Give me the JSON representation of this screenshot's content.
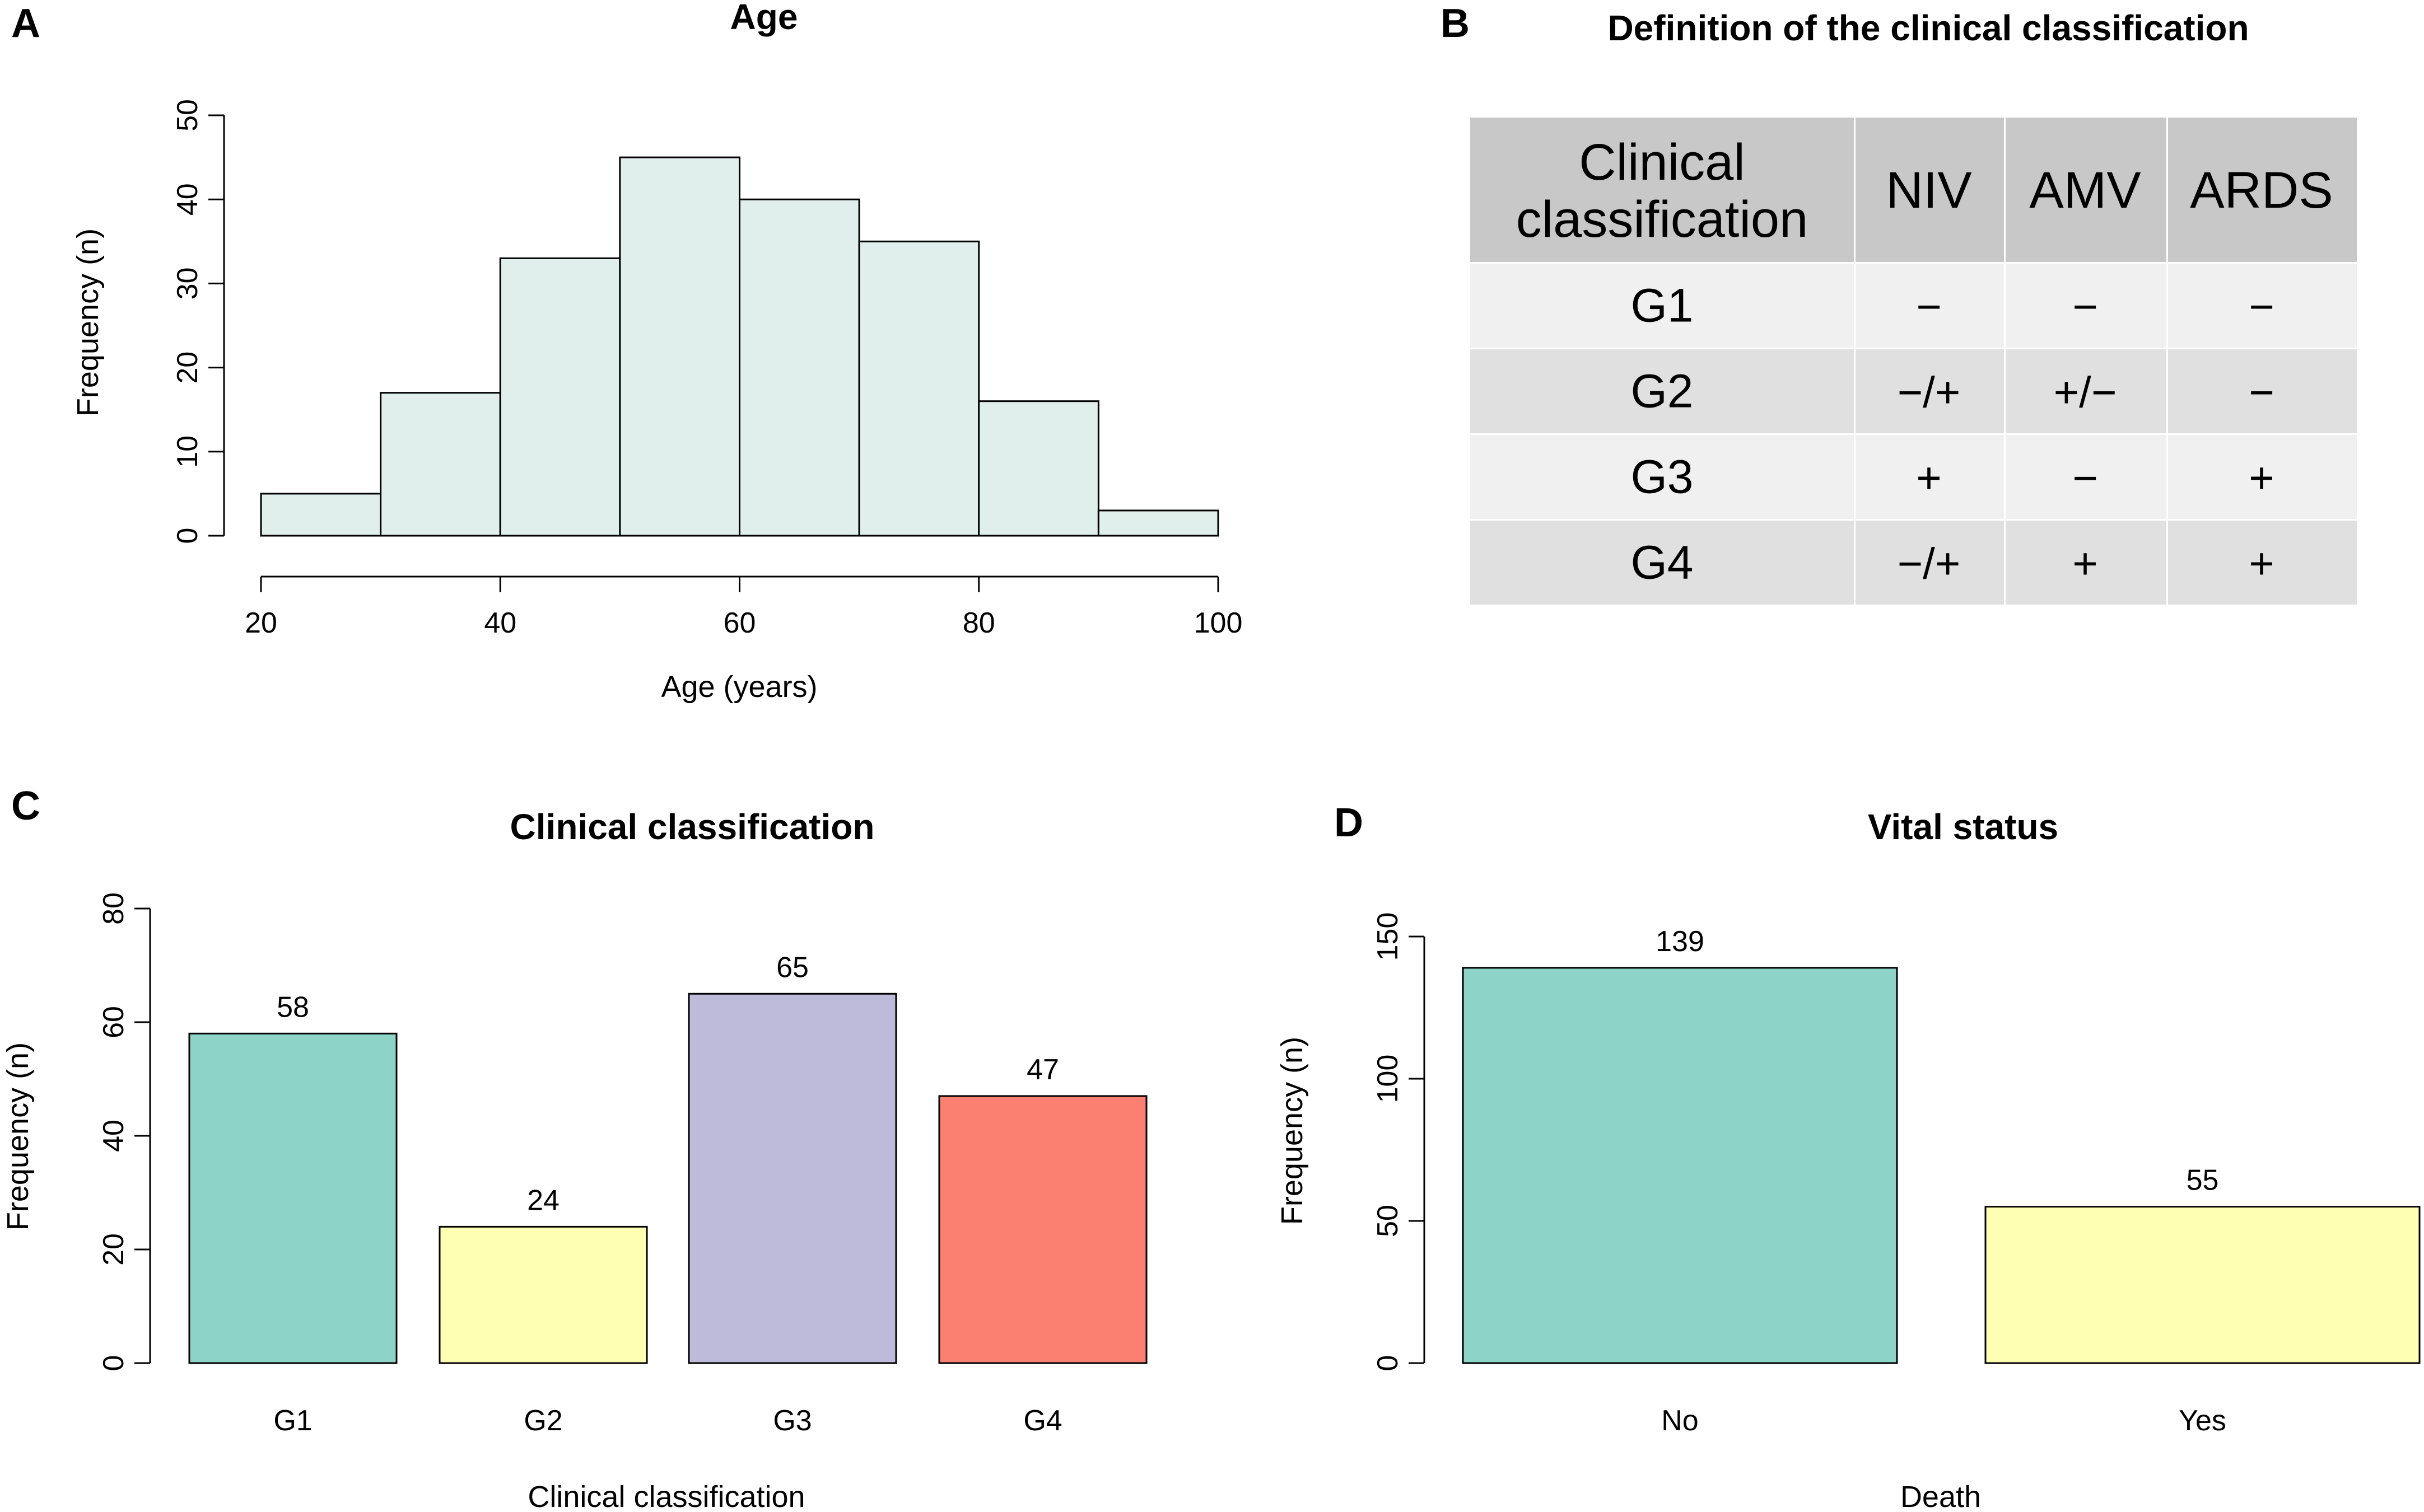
{
  "panels": {
    "A": "A",
    "B": "B",
    "C": "C",
    "D": "D"
  },
  "chart_data": [
    {
      "panel": "A",
      "type": "histogram",
      "title": "Age",
      "xlabel": "Age (years)",
      "ylabel": "Frequency (n)",
      "bins": [
        {
          "from": 20,
          "to": 30,
          "value": 5
        },
        {
          "from": 30,
          "to": 40,
          "value": 17
        },
        {
          "from": 40,
          "to": 50,
          "value": 33
        },
        {
          "from": 50,
          "to": 60,
          "value": 45
        },
        {
          "from": 60,
          "to": 70,
          "value": 40
        },
        {
          "from": 70,
          "to": 80,
          "value": 35
        },
        {
          "from": 80,
          "to": 90,
          "value": 16
        },
        {
          "from": 90,
          "to": 100,
          "value": 3
        }
      ],
      "xticks": [
        20,
        40,
        60,
        80,
        100
      ],
      "yticks": [
        0,
        10,
        20,
        30,
        40,
        50
      ],
      "xlim": [
        20,
        100
      ],
      "ylim": [
        0,
        50
      ],
      "bar_color": "#e0eeec"
    },
    {
      "panel": "C",
      "type": "bar",
      "title": "Clinical classification",
      "xlabel": "Clinical classification",
      "ylabel": "Frequency (n)",
      "categories": [
        "G1",
        "G2",
        "G3",
        "G4"
      ],
      "values": [
        58,
        24,
        65,
        47
      ],
      "data_labels": [
        "58",
        "24",
        "65",
        "47"
      ],
      "colors": [
        "#8dd3c7",
        "#ffffb3",
        "#bebada",
        "#fb8072"
      ],
      "yticks": [
        0,
        20,
        40,
        60,
        80
      ],
      "ylim": [
        0,
        80
      ]
    },
    {
      "panel": "D",
      "type": "bar",
      "title": "Vital status",
      "xlabel": "Death",
      "ylabel": "Frequency (n)",
      "categories": [
        "No",
        "Yes"
      ],
      "values": [
        139,
        55
      ],
      "data_labels": [
        "139",
        "55"
      ],
      "colors": [
        "#8dd3c7",
        "#ffffb3"
      ],
      "yticks": [
        0,
        50,
        100,
        150
      ],
      "ylim": [
        0,
        150
      ]
    }
  ],
  "table": {
    "panel": "B",
    "title": "Definition of the clinical classification",
    "header": [
      "Clinical\nclassification",
      "NIV",
      "AMV",
      "ARDS"
    ],
    "rows": [
      [
        "G1",
        "−",
        "−",
        "−"
      ],
      [
        "G2",
        "−/+",
        "+/−",
        "−"
      ],
      [
        "G3",
        "+",
        "−",
        "+"
      ],
      [
        "G4",
        "−/+",
        "+",
        "+"
      ]
    ],
    "colors": {
      "header_bg": "#c8c8c8",
      "row_light": "#f0f0f0",
      "row_dark": "#e0e0e0"
    }
  }
}
